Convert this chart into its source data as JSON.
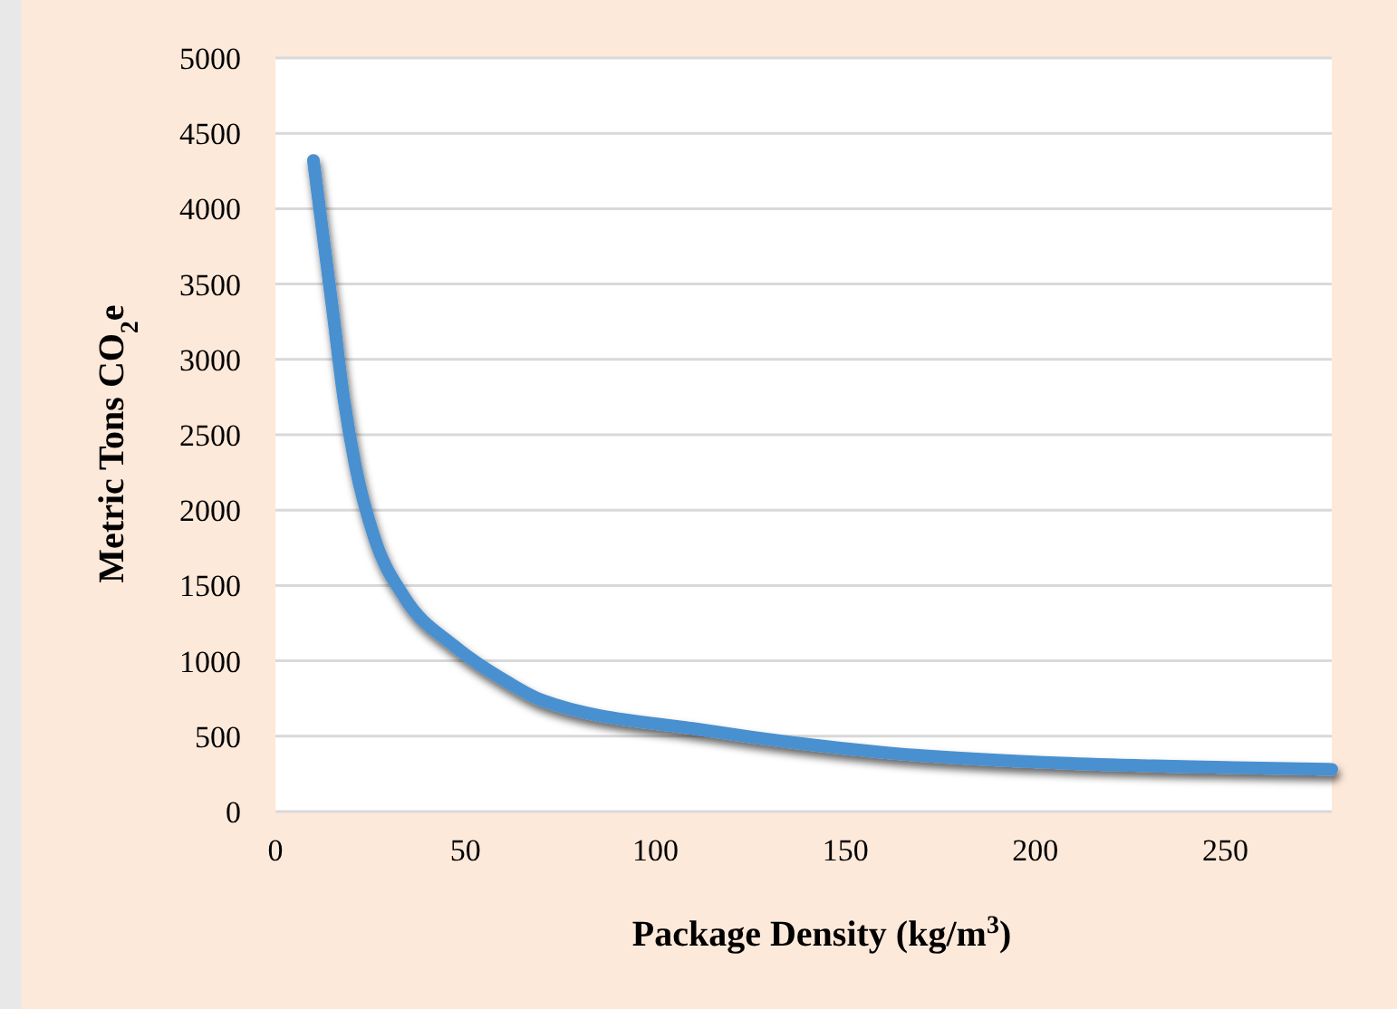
{
  "chart_data": {
    "type": "line",
    "xlabel": "Package Density (kg/m$^{3}$)",
    "ylabel": "Metric Tons CO$_{2}$e",
    "x": [
      10,
      15,
      18,
      21,
      26,
      34,
      47,
      61,
      70,
      113,
      161,
      209,
      256,
      278
    ],
    "series": [
      {
        "color": "#4a90d0",
        "values": [
          4320,
          3340,
          2740,
          2300,
          1820,
          1420,
          1100,
          860,
          740,
          540,
          390,
          320,
          290,
          280
        ]
      }
    ],
    "xlim": [
      0,
      278
    ],
    "xticks": [
      0,
      50,
      100,
      150,
      200,
      250
    ],
    "ylim": [
      0,
      5000
    ],
    "yticks": [
      0,
      500,
      1000,
      1500,
      2000,
      2500,
      3000,
      3500,
      4000,
      4500,
      5000
    ],
    "grid": "y",
    "marker": "none",
    "line_style": "solid"
  }
}
